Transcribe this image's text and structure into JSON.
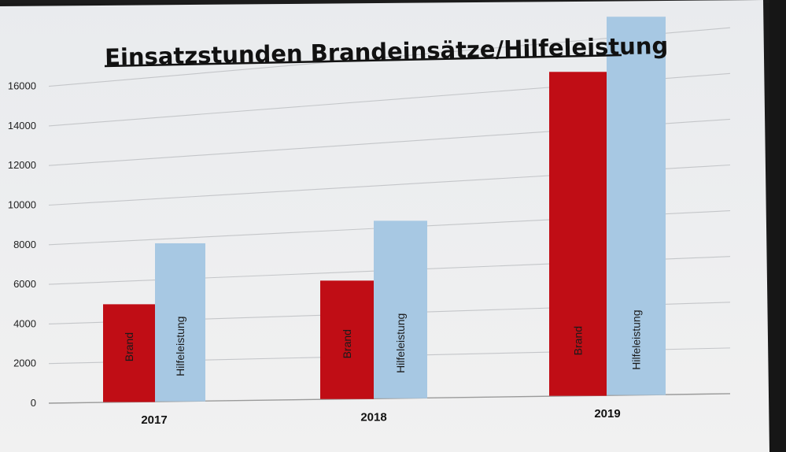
{
  "chart_data": {
    "type": "bar",
    "title": "Einsatzstunden Brandeinsätze/Hilfeleistung",
    "categories": [
      "2017",
      "2018",
      "2019"
    ],
    "series": [
      {
        "name": "Brand",
        "values": [
          4850,
          5600,
          14600
        ],
        "color": "#c00d15"
      },
      {
        "name": "Hilfeleistung",
        "values": [
          7750,
          8300,
          16850
        ],
        "color": "#a7c8e3"
      }
    ],
    "yticks": [
      0,
      2000,
      4000,
      6000,
      8000,
      10000,
      12000,
      14000,
      16000
    ],
    "ylim": [
      0,
      17000
    ],
    "grid": true,
    "legend": "none",
    "bar_labels": "inside-vertical"
  }
}
